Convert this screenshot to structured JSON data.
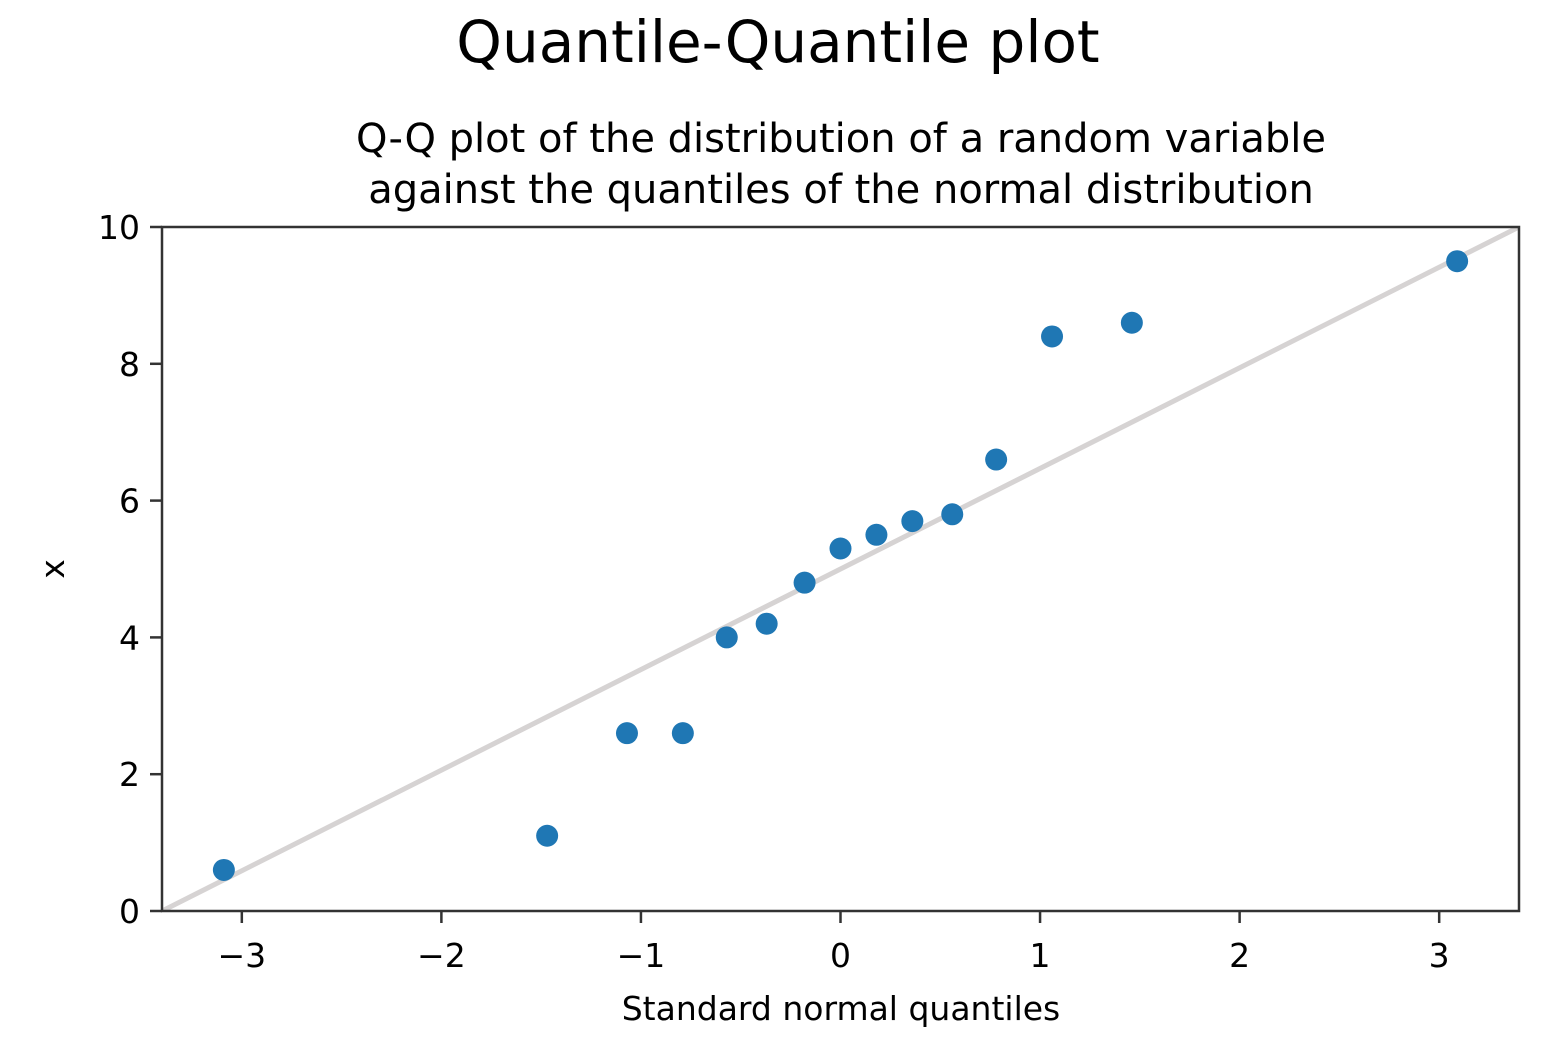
{
  "chart_data": {
    "type": "scatter",
    "suptitle": "Quantile-Quantile plot",
    "title_lines": [
      "Q-Q plot of the distribution of a random variable",
      "against the quantiles of the normal distribution"
    ],
    "xlabel": "Standard normal quantiles",
    "ylabel": "x",
    "xlim": [
      -3.4,
      3.4
    ],
    "ylim": [
      0,
      10
    ],
    "x_ticks": [
      -3,
      -2,
      -1,
      0,
      1,
      2,
      3
    ],
    "x_tick_labels": [
      "−3",
      "−2",
      "−1",
      "0",
      "1",
      "2",
      "3"
    ],
    "y_ticks": [
      0,
      2,
      4,
      6,
      8,
      10
    ],
    "y_tick_labels": [
      "0",
      "2",
      "4",
      "6",
      "8",
      "10"
    ],
    "grid": false,
    "series": [
      {
        "color": "#1f77b4",
        "points": [
          {
            "x": -3.09,
            "y": 0.6
          },
          {
            "x": -1.47,
            "y": 1.1
          },
          {
            "x": -1.07,
            "y": 2.6
          },
          {
            "x": -0.79,
            "y": 2.6
          },
          {
            "x": -0.57,
            "y": 4.0
          },
          {
            "x": -0.37,
            "y": 4.2
          },
          {
            "x": -0.18,
            "y": 4.8
          },
          {
            "x": 0.0,
            "y": 5.3
          },
          {
            "x": 0.18,
            "y": 5.5
          },
          {
            "x": 0.36,
            "y": 5.7
          },
          {
            "x": 0.56,
            "y": 5.8
          },
          {
            "x": 0.78,
            "y": 6.6
          },
          {
            "x": 1.06,
            "y": 8.4
          },
          {
            "x": 1.46,
            "y": 8.6
          },
          {
            "x": 3.09,
            "y": 9.5
          }
        ]
      }
    ],
    "reference_line": {
      "color": "#d6d3d3",
      "points": [
        {
          "x": -3.4,
          "y": 0.0
        },
        {
          "x": 3.4,
          "y": 10.0
        }
      ]
    }
  }
}
